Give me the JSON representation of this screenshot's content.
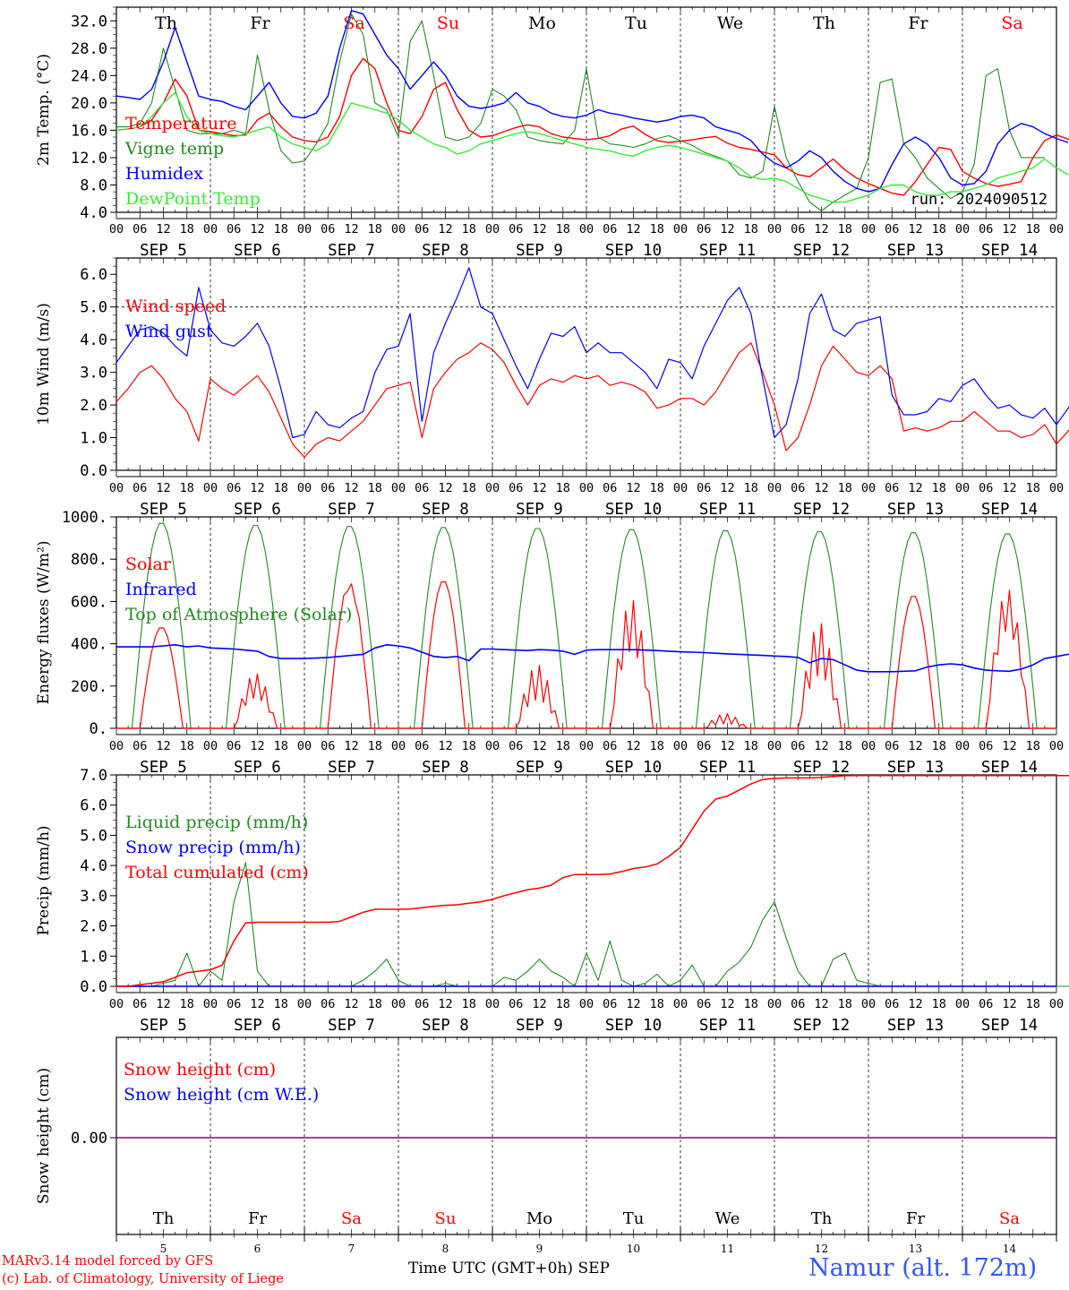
{
  "days": [
    "Th",
    "Fr",
    "Sa",
    "Su",
    "Mo",
    "Tu",
    "We",
    "Th",
    "Fr",
    "Sa"
  ],
  "weekend_days": [
    2,
    3,
    9
  ],
  "date_labels": [
    "SEP  5",
    "SEP  6",
    "SEP  7",
    "SEP  8",
    "SEP  9",
    "SEP 10",
    "SEP 11",
    "SEP 12",
    "SEP 13",
    "SEP 14"
  ],
  "hour_labels": [
    "00",
    "06",
    "12",
    "18"
  ],
  "hour_end_label": "00",
  "bottom_day_numbers": [
    "5",
    "6",
    "7",
    "8",
    "9",
    "10",
    "11",
    "12",
    "13",
    "14"
  ],
  "x_axis_title": "Time UTC (GMT+0h)",
  "x_axis_month": "SEP",
  "credits": [
    "MARv3.14 model forced by GFS",
    "(c) Lab. of Climatology, University of Liege"
  ],
  "station": "Namur (alt. 172m)",
  "colors": {
    "red": "#ff0000",
    "green": "#228b22",
    "blue": "#0000ff",
    "lightgreen": "#33ee33",
    "purple": "#800080",
    "station": "#3355ff"
  },
  "chart_data": [
    {
      "type": "line",
      "ylabel": "2m Temp. (°C)",
      "ylim": [
        4.0,
        34.0
      ],
      "yticks": [
        "4.0",
        "8.0",
        "12.0",
        "16.0",
        "20.0",
        "24.0",
        "28.0",
        "32.0"
      ],
      "x_unit": "hours since SEP 5 00 UTC (3-hourly steps, shown on a date axis)",
      "x_step_hours": 3,
      "annotation": "run: 2024090512",
      "series": [
        {
          "name": "Temperature",
          "color": "red",
          "values": [
            16.0,
            16.2,
            16.5,
            17.5,
            20,
            23.5,
            21,
            16,
            15.8,
            15.5,
            15.2,
            15.3,
            17.5,
            18.5,
            16.5,
            15,
            14.5,
            14.3,
            15,
            18,
            24,
            26.5,
            25,
            20,
            16,
            15.5,
            18,
            22,
            23,
            19,
            16,
            15,
            15.2,
            15.8,
            16.4,
            16.8,
            16.5,
            15.5,
            15,
            14.8,
            14.6,
            14.8,
            15.2,
            16.2,
            16.6,
            15.4,
            14.5,
            14.2,
            14.4,
            14.6,
            14.9,
            15.1,
            14.1,
            13.5,
            13.2,
            12.8,
            12.4,
            10.5,
            9.5,
            9.2,
            10.5,
            11.8,
            10.2,
            9.0,
            8.2,
            7.5,
            6.8,
            6.5,
            8.5,
            11,
            13.5,
            13.2,
            10.0,
            9.0,
            8.2,
            7.8,
            8.1,
            8.5,
            12,
            14.5,
            15.3,
            14.7,
            13.8,
            13.2
          ]
        },
        {
          "name": "Vigne temp",
          "color": "green",
          "values": [
            16.5,
            16.5,
            17,
            20,
            28,
            22,
            16,
            15.5,
            15.5,
            15.5,
            16,
            15.5,
            27,
            19,
            13,
            11.2,
            11.5,
            14,
            17,
            26,
            33,
            30,
            20,
            19,
            15,
            29,
            32,
            24,
            15,
            14.5,
            15,
            17,
            22,
            21,
            19,
            15,
            14.5,
            14.2,
            14,
            16,
            25,
            15,
            14,
            13.8,
            13.5,
            14,
            14.8,
            15.2,
            14.5,
            13.8,
            12.8,
            12.2,
            11.5,
            9.5,
            9.0,
            10,
            19.5,
            12,
            8.5,
            5.5,
            4.2,
            5.5,
            6.5,
            7.5,
            12,
            23,
            23.5,
            14,
            12,
            9,
            7.5,
            6,
            7,
            11,
            24,
            25,
            16,
            12,
            12,
            12
          ]
        },
        {
          "name": "Humidex",
          "color": "blue",
          "values": [
            21,
            20.8,
            20.5,
            22,
            26,
            31,
            26,
            21,
            20.5,
            20.2,
            19.5,
            19,
            21,
            23,
            20,
            18,
            17.8,
            18.5,
            21,
            28,
            33.5,
            33,
            30,
            27,
            25,
            22,
            24,
            26,
            24,
            21,
            19.5,
            19.2,
            19.5,
            20,
            21.5,
            20,
            19.5,
            18.5,
            18,
            17.8,
            18.2,
            19,
            18.5,
            18.2,
            17.8,
            17.5,
            17.2,
            17.5,
            18,
            18.2,
            17.8,
            16.5,
            16,
            15.5,
            14.5,
            12.5,
            11.2,
            10.5,
            11.5,
            13,
            12,
            10,
            8.5,
            7.5,
            7.0,
            7.5,
            11,
            14,
            15,
            14,
            12,
            9,
            8.0,
            8.2,
            10,
            14,
            16,
            17,
            16.5,
            15.5,
            14.8,
            14.2
          ]
        },
        {
          "name": "DewPoint Temp",
          "color": "lightgreen",
          "values": [
            16,
            16.2,
            16.5,
            18,
            20,
            21.5,
            18,
            16,
            15.5,
            15.2,
            15,
            15.5,
            16,
            16.5,
            15,
            14,
            13.5,
            13,
            14,
            17,
            20,
            19.5,
            19,
            18.5,
            17.5,
            16,
            15,
            14,
            13.5,
            12.5,
            13,
            14,
            14.5,
            15,
            15.5,
            15.8,
            15.5,
            15,
            14.5,
            14,
            13.5,
            13.2,
            13,
            12.5,
            12.2,
            13,
            13.5,
            13.8,
            13.5,
            13,
            12.5,
            12,
            11.5,
            10.5,
            9.2,
            8.8,
            9.0,
            8.5,
            7.5,
            6.5,
            6.0,
            5.5,
            5.5,
            6.0,
            6.5,
            7.5,
            8.0,
            8.0,
            7.0,
            6.5,
            6.5,
            7.0,
            7.0,
            7.5,
            8,
            9,
            9.5,
            10,
            10.5,
            11.8,
            10.5,
            9.5
          ]
        }
      ]
    },
    {
      "type": "line",
      "ylabel": "10m Wind (m/s)",
      "ylim": [
        0.0,
        6.5
      ],
      "yticks": [
        "0.0",
        "1.0",
        "2.0",
        "3.0",
        "4.0",
        "5.0",
        "6.0"
      ],
      "reference_line": 5.0,
      "x_step_hours": 3,
      "series": [
        {
          "name": "Wind speed",
          "color": "red",
          "values": [
            2.1,
            2.5,
            3.0,
            3.2,
            2.8,
            2.2,
            1.8,
            0.9,
            2.8,
            2.5,
            2.3,
            2.6,
            2.9,
            2.4,
            1.6,
            0.8,
            0.4,
            0.8,
            1.0,
            0.9,
            1.2,
            1.5,
            2.0,
            2.5,
            2.6,
            2.7,
            1.0,
            2.5,
            3.0,
            3.4,
            3.6,
            3.9,
            3.7,
            3.3,
            2.6,
            2.0,
            2.6,
            2.8,
            2.7,
            2.9,
            2.8,
            2.9,
            2.6,
            2.7,
            2.6,
            2.4,
            1.9,
            2.0,
            2.2,
            2.2,
            2.0,
            2.4,
            3.0,
            3.6,
            3.9,
            3.0,
            2.0,
            0.6,
            1.0,
            2.0,
            3.2,
            3.8,
            3.4,
            3.0,
            2.9,
            3.2,
            2.8,
            1.2,
            1.3,
            1.2,
            1.3,
            1.5,
            1.5,
            1.8,
            1.5,
            1.2,
            1.2,
            1.0,
            1.1,
            1.4,
            0.8,
            1.2,
            1.6,
            2.3,
            2.0
          ]
        },
        {
          "name": "Wind gust",
          "color": "blue",
          "values": [
            3.3,
            3.8,
            4.3,
            4.4,
            4.2,
            3.8,
            3.5,
            5.6,
            4.3,
            3.9,
            3.8,
            4.1,
            4.5,
            3.8,
            2.5,
            1.0,
            1.1,
            1.8,
            1.4,
            1.3,
            1.6,
            1.8,
            3.0,
            3.7,
            3.8,
            4.8,
            1.5,
            3.6,
            4.5,
            5.3,
            6.2,
            5.0,
            4.8,
            4.0,
            3.2,
            2.5,
            3.4,
            4.2,
            4.1,
            4.4,
            3.6,
            3.9,
            3.6,
            3.6,
            3.3,
            3.0,
            2.5,
            3.4,
            3.3,
            2.8,
            3.8,
            4.5,
            5.2,
            5.6,
            4.8,
            2.8,
            1.0,
            1.4,
            2.8,
            4.8,
            5.4,
            4.3,
            4.1,
            4.5,
            4.6,
            4.7,
            2.3,
            1.7,
            1.7,
            1.8,
            2.2,
            2.1,
            2.6,
            2.8,
            2.3,
            1.9,
            2.0,
            1.7,
            1.6,
            1.9,
            1.4,
            1.9,
            2.5,
            3.0,
            2.6
          ]
        }
      ]
    },
    {
      "type": "line",
      "ylabel": "Energy fluxes (W/m²)",
      "ylim": [
        0,
        1000
      ],
      "yticks": [
        "0.",
        "200.",
        "400.",
        "600.",
        "800.",
        "1000."
      ],
      "x_step_hours": 1,
      "series": [
        {
          "name": "Solar",
          "color": "red",
          "peaks": [
            480,
            260,
            690,
            700,
            300,
            610,
            70,
            500,
            630,
            660
          ]
        },
        {
          "name": "Infrared",
          "color": "blue",
          "values_3h": [
            385,
            385,
            385,
            385,
            390,
            395,
            385,
            390,
            380,
            378,
            375,
            370,
            365,
            340,
            330,
            330,
            330,
            332,
            335,
            340,
            345,
            350,
            380,
            395,
            390,
            380,
            360,
            340,
            335,
            340,
            320,
            375,
            375,
            372,
            370,
            368,
            372,
            370,
            365,
            350,
            370,
            372,
            372,
            372,
            372,
            370,
            368,
            365,
            362,
            360,
            358,
            355,
            352,
            350,
            347,
            345,
            342,
            340,
            335,
            310,
            330,
            325,
            300,
            275,
            268,
            268,
            268,
            270,
            272,
            290,
            300,
            305,
            300,
            285,
            275,
            272,
            270,
            280,
            300,
            330,
            340,
            350,
            355,
            350,
            345
          ]
        },
        {
          "name": "Top of Atmosphere (Solar)",
          "color": "green",
          "peaks": [
            975,
            965,
            960,
            955,
            950,
            945,
            940,
            935,
            930,
            925
          ]
        }
      ]
    },
    {
      "type": "line",
      "ylabel": "Precip (mm/h)",
      "ylim": [
        0.0,
        7.0
      ],
      "yticks": [
        "0.0",
        "1.0",
        "2.0",
        "3.0",
        "4.0",
        "5.0",
        "6.0",
        "7.0"
      ],
      "x_step_hours": 3,
      "series": [
        {
          "name": "Liquid precip (mm/h)",
          "color": "green",
          "values": [
            0,
            0,
            0,
            0,
            0.1,
            0.2,
            1.1,
            0,
            0.5,
            0.2,
            2.8,
            4.1,
            0.5,
            0,
            0,
            0,
            0,
            0,
            0,
            0,
            0,
            0.2,
            0.5,
            0.9,
            0.2,
            0,
            0,
            0,
            0.1,
            0,
            0,
            0,
            0,
            0.3,
            0.2,
            0.5,
            0.9,
            0.5,
            0.3,
            0,
            1.1,
            0.2,
            1.5,
            0.2,
            0,
            0.1,
            0.4,
            0,
            0.2,
            0.7,
            0,
            0,
            0.5,
            0.8,
            1.3,
            2.2,
            2.8,
            1.6,
            0.5,
            0,
            0,
            0.9,
            1.1,
            0.2,
            0.1,
            0,
            0,
            0,
            0,
            0,
            0,
            0,
            0,
            0,
            0,
            0,
            0,
            0,
            0,
            0,
            0,
            0,
            0,
            0,
            0
          ]
        },
        {
          "name": "Snow precip (mm/h)",
          "color": "blue",
          "values": [
            0
          ]
        },
        {
          "name": "Total cumulated (cm)",
          "color": "red",
          "values": [
            0,
            0,
            0.05,
            0.1,
            0.15,
            0.3,
            0.45,
            0.5,
            0.55,
            0.7,
            1.5,
            2.1,
            2.12,
            2.12,
            2.12,
            2.12,
            2.12,
            2.12,
            2.12,
            2.15,
            2.3,
            2.45,
            2.55,
            2.55,
            2.55,
            2.56,
            2.6,
            2.65,
            2.68,
            2.7,
            2.75,
            2.8,
            2.88,
            3.0,
            3.1,
            3.2,
            3.25,
            3.35,
            3.6,
            3.7,
            3.7,
            3.7,
            3.72,
            3.8,
            3.9,
            3.95,
            4.05,
            4.3,
            4.6,
            5.2,
            5.8,
            6.2,
            6.3,
            6.5,
            6.7,
            6.85,
            6.88,
            6.9,
            6.9,
            6.9,
            6.92,
            6.95,
            6.97,
            6.98,
            6.98,
            6.98,
            6.98,
            6.98,
            6.98,
            6.98,
            6.98,
            6.98,
            6.98,
            6.98,
            6.98,
            6.98,
            6.98,
            6.98,
            6.98,
            6.98,
            6.98,
            6.98,
            6.98,
            6.98,
            6.98
          ]
        }
      ]
    },
    {
      "type": "line",
      "ylabel": "Snow height (cm)",
      "yticks": [
        "0.00"
      ],
      "series": [
        {
          "name": "Snow height (cm)",
          "color": "red",
          "values": [
            0
          ]
        },
        {
          "name": "Snow height (cm W.E.)",
          "color": "blue",
          "values": [
            0
          ]
        }
      ]
    }
  ]
}
